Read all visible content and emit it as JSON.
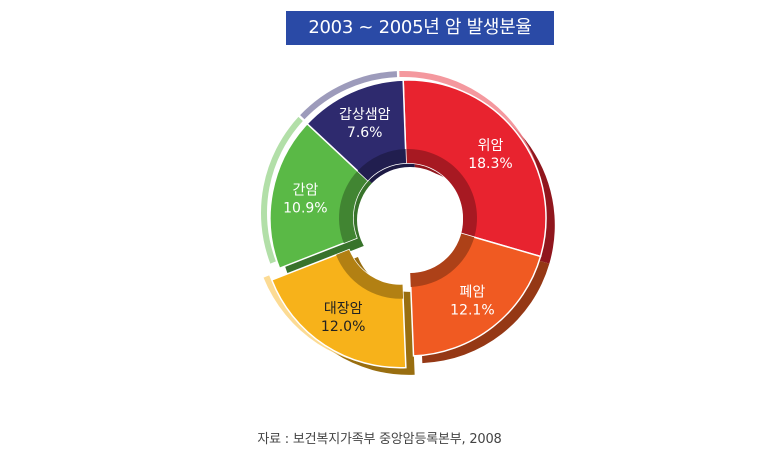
{
  "chart_data": {
    "type": "pie",
    "title": "2003 ~ 2005년 암 발생분율",
    "source": "자료 : 보건복지가족부 중앙암등록본부, 2008",
    "categories": [
      "위암",
      "폐암",
      "대장암",
      "간암",
      "갑상샘암"
    ],
    "values": [
      18.3,
      12.1,
      12.0,
      10.9,
      7.6
    ],
    "value_labels": [
      "18.3%",
      "12.1%",
      "12.0%",
      "10.9%",
      "7.6%"
    ],
    "colors": [
      "#e8232f",
      "#f05a22",
      "#f7b21a",
      "#5ab946",
      "#2e2a6e"
    ],
    "donut": true,
    "exploded": "대장암",
    "legend": "none"
  }
}
